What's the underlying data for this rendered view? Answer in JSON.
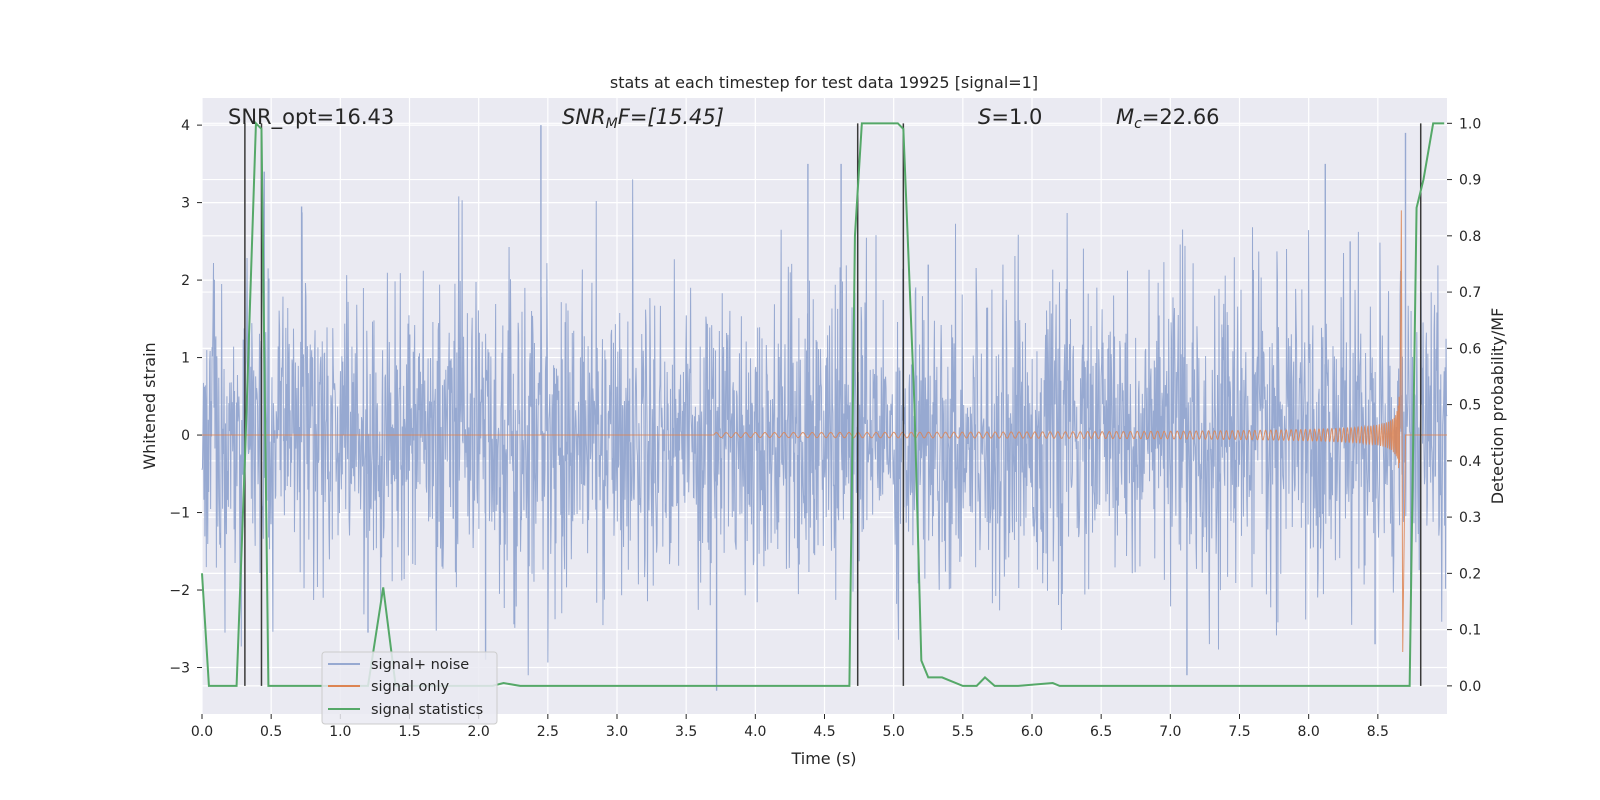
{
  "chart_data": {
    "type": "line",
    "title": "stats at each timestep for test data 19925 [signal=1]",
    "xlabel": "Time (s)",
    "ylabel": "Whitened strain",
    "y2label": "Detection probability/MF",
    "xlim": [
      0.0,
      9.0
    ],
    "ylim": [
      -3.6,
      4.35
    ],
    "y2lim": [
      -0.05,
      1.045
    ],
    "xticks": [
      0.0,
      0.5,
      1.0,
      1.5,
      2.0,
      2.5,
      3.0,
      3.5,
      4.0,
      4.5,
      5.0,
      5.5,
      6.0,
      6.5,
      7.0,
      7.5,
      8.0,
      8.5
    ],
    "xtick_labels": [
      "0.0",
      "0.5",
      "1.0",
      "1.5",
      "2.0",
      "2.5",
      "3.0",
      "3.5",
      "4.0",
      "4.5",
      "5.0",
      "5.5",
      "6.0",
      "6.5",
      "7.0",
      "7.5",
      "8.0",
      "8.5"
    ],
    "yticks": [
      -3,
      -2,
      -1,
      0,
      1,
      2,
      3,
      4
    ],
    "ytick_labels": [
      "−3",
      "−2",
      "−1",
      "0",
      "1",
      "2",
      "3",
      "4"
    ],
    "y2ticks": [
      0.0,
      0.1,
      0.2,
      0.3,
      0.4,
      0.5,
      0.6,
      0.7,
      0.8,
      0.9,
      1.0
    ],
    "y2tick_labels": [
      "0.0",
      "0.1",
      "0.2",
      "0.3",
      "0.4",
      "0.5",
      "0.6",
      "0.7",
      "0.8",
      "0.9",
      "1.0"
    ],
    "grid": true,
    "legend_position": "lower-left",
    "annotations": {
      "snr_opt": "SNR_opt=16.43",
      "snr_mf_base": "SNR",
      "snr_mf_sub": "M",
      "snr_mf_rest": "F=[15.45]",
      "s_var": "S",
      "s_rest": "=1.0",
      "mc_var": "M",
      "mc_sub": "c",
      "mc_rest": "=22.66"
    },
    "series": [
      {
        "name": "signal+ noise",
        "color": "#97a9d1",
        "kind": "noise",
        "envelope_sigma": 1.0,
        "notable_peaks": [
          [
            0.45,
            3.4
          ],
          [
            0.72,
            2.95
          ],
          [
            2.45,
            4.0
          ],
          [
            4.38,
            3.5
          ],
          [
            4.62,
            3.5
          ],
          [
            5.25,
            2.2
          ],
          [
            8.12,
            3.5
          ],
          [
            8.3,
            2.5
          ],
          [
            8.7,
            3.9
          ]
        ],
        "notable_troughs": [
          [
            1.2,
            -2.55
          ],
          [
            2.05,
            -2.9
          ],
          [
            3.72,
            -3.3
          ],
          [
            7.12,
            -3.1
          ],
          [
            8.48,
            -2.7
          ]
        ]
      },
      {
        "name": "signal only",
        "color": "#dd8452",
        "kind": "chirp",
        "start_time": 3.7,
        "merger_time": 8.66,
        "peak_amplitude": 2.9,
        "min_amplitude": -2.8
      },
      {
        "name": "signal statistics",
        "color": "#55a868",
        "axis": "right",
        "x": [
          0.0,
          0.05,
          0.25,
          0.31,
          0.39,
          0.43,
          0.48,
          0.9,
          1.2,
          1.31,
          1.4,
          2.1,
          2.18,
          2.3,
          4.68,
          4.72,
          4.77,
          4.83,
          5.03,
          5.07,
          5.15,
          5.2,
          5.25,
          5.35,
          5.5,
          5.6,
          5.66,
          5.73,
          5.8,
          5.9,
          6.15,
          6.2,
          6.25,
          8.73,
          8.78,
          8.83,
          8.9,
          8.98
        ],
        "y": [
          0.2,
          0.0,
          0.0,
          0.4,
          1.0,
          0.99,
          0.0,
          0.0,
          0.0,
          0.175,
          0.0,
          0.0,
          0.005,
          0.0,
          0.0,
          0.8,
          1.0,
          1.0,
          1.0,
          0.99,
          0.5,
          0.045,
          0.015,
          0.015,
          0.0,
          0.0,
          0.015,
          0.0,
          0.0,
          0.0,
          0.005,
          0.0,
          0.0,
          0.0,
          0.85,
          0.9,
          1.0,
          1.0
        ]
      }
    ],
    "vertical_markers": {
      "color": "#3a3a3a",
      "times": [
        0.31,
        0.43,
        4.74,
        5.07,
        8.81
      ]
    }
  }
}
